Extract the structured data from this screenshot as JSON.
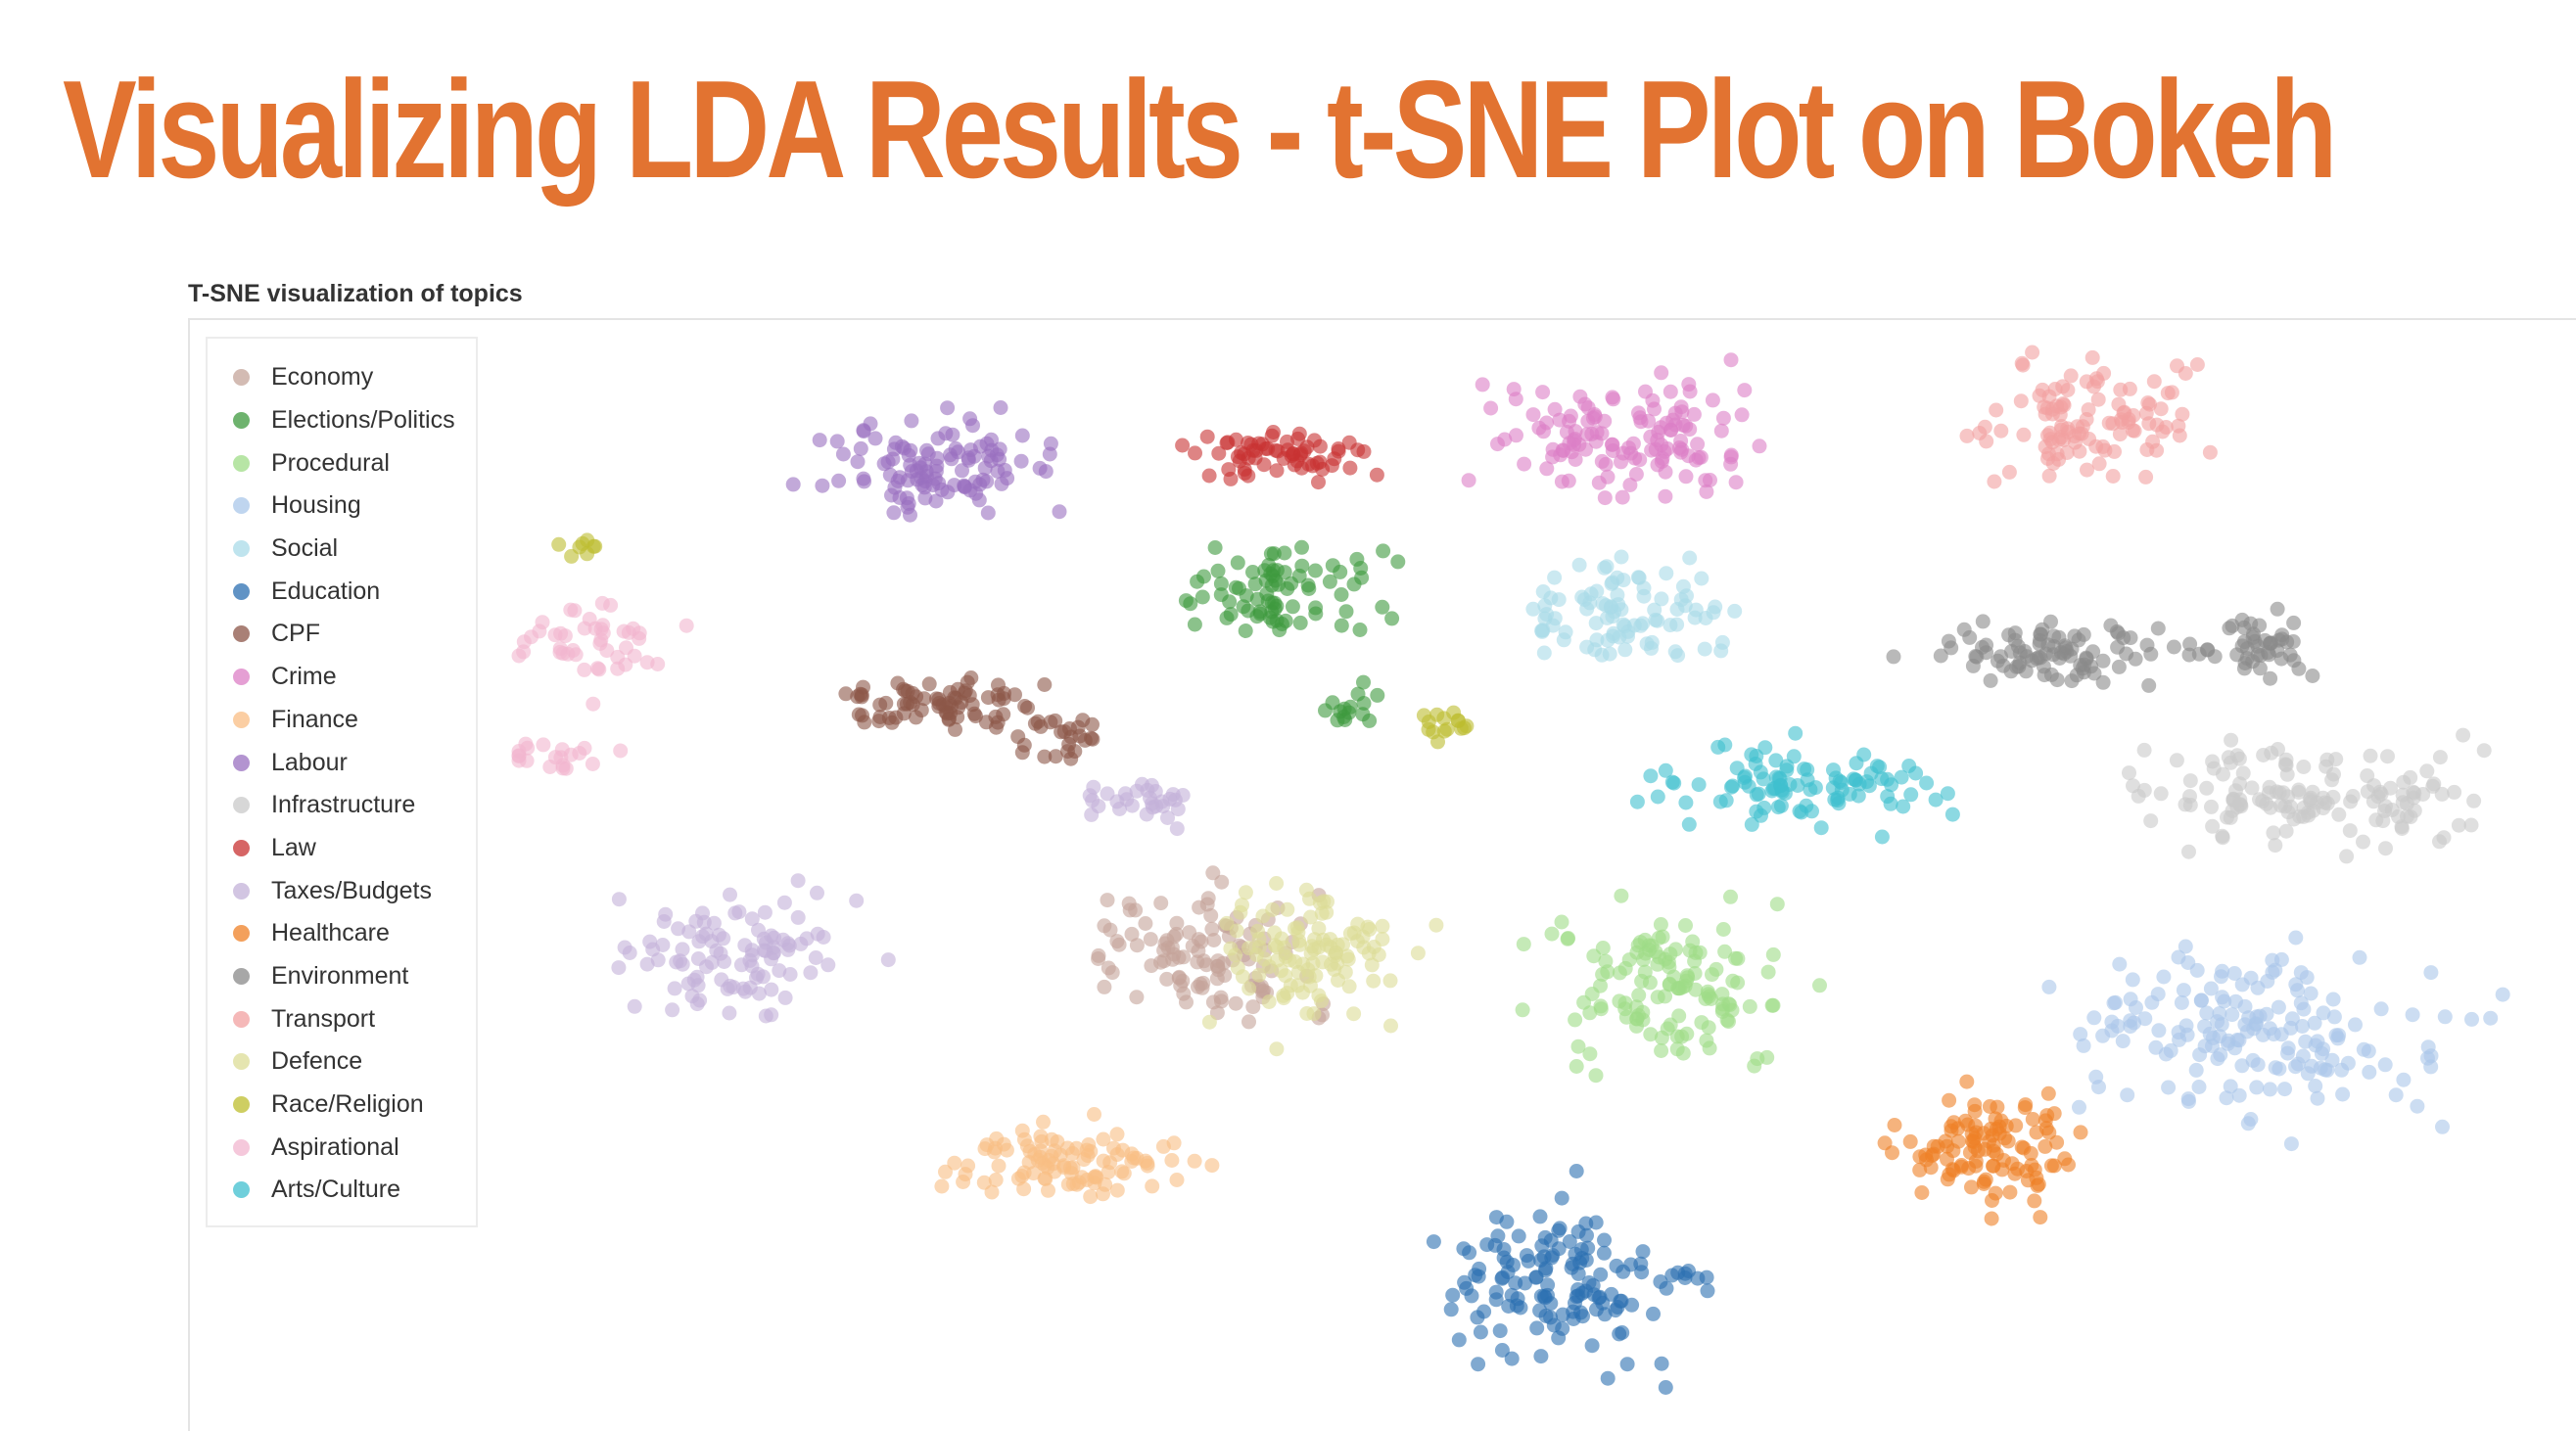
{
  "slide": {
    "title": "Visualizing LDA Results - t-SNE Plot on Bokeh"
  },
  "chart_data": {
    "type": "scatter",
    "title": "T-SNE visualization of topics",
    "xlabel": "",
    "ylabel": "",
    "grid": false,
    "legend_position": "top-left",
    "xlim": [
      0,
      100
    ],
    "ylim": [
      0,
      100
    ],
    "point_opacity": 0.6,
    "series": [
      {
        "name": "Economy",
        "color": "#c4a49a",
        "clusters": [
          {
            "cx": 34,
            "cy": 42,
            "rx": 5,
            "ry": 6,
            "n": 110
          }
        ]
      },
      {
        "name": "Elections/Politics",
        "color": "#3e9a3e",
        "clusters": [
          {
            "cx": 38,
            "cy": 77,
            "rx": 5,
            "ry": 3.5,
            "n": 80
          },
          {
            "cx": 41,
            "cy": 66,
            "rx": 1.5,
            "ry": 2,
            "n": 15
          }
        ]
      },
      {
        "name": "Procedural",
        "color": "#9fdc87",
        "clusters": [
          {
            "cx": 57,
            "cy": 39,
            "rx": 5.5,
            "ry": 7,
            "n": 130
          }
        ]
      },
      {
        "name": "Housing",
        "color": "#aac7ea",
        "clusters": [
          {
            "cx": 86,
            "cy": 35,
            "rx": 8,
            "ry": 7,
            "n": 170
          }
        ]
      },
      {
        "name": "Social",
        "color": "#a9dbe8",
        "clusters": [
          {
            "cx": 55,
            "cy": 75,
            "rx": 4.5,
            "ry": 5,
            "n": 90
          }
        ]
      },
      {
        "name": "Education",
        "color": "#2b6fb1",
        "clusters": [
          {
            "cx": 51,
            "cy": 10,
            "rx": 4.5,
            "ry": 7,
            "n": 130
          },
          {
            "cx": 58,
            "cy": 11,
            "rx": 1.5,
            "ry": 1.2,
            "n": 10
          }
        ]
      },
      {
        "name": "CPF",
        "color": "#8c5648",
        "clusters": [
          {
            "cx": 21,
            "cy": 66,
            "rx": 4.5,
            "ry": 2.5,
            "n": 75
          },
          {
            "cx": 27,
            "cy": 63,
            "rx": 2.5,
            "ry": 2,
            "n": 25
          }
        ]
      },
      {
        "name": "Crime",
        "color": "#dc7fc6",
        "clusters": [
          {
            "cx": 55,
            "cy": 92,
            "rx": 6,
            "ry": 5,
            "n": 130
          }
        ]
      },
      {
        "name": "Finance",
        "color": "#f9be84",
        "clusters": [
          {
            "cx": 27,
            "cy": 22,
            "rx": 5.5,
            "ry": 3,
            "n": 100
          }
        ]
      },
      {
        "name": "Labour",
        "color": "#9a70c0",
        "clusters": [
          {
            "cx": 21,
            "cy": 89,
            "rx": 5,
            "ry": 4.5,
            "n": 110
          }
        ]
      },
      {
        "name": "Infrastructure",
        "color": "#c9c9c9",
        "clusters": [
          {
            "cx": 89,
            "cy": 57,
            "rx": 7.5,
            "ry": 4,
            "n": 140
          }
        ]
      },
      {
        "name": "Law",
        "color": "#c83232",
        "clusters": [
          {
            "cx": 38,
            "cy": 90,
            "rx": 4,
            "ry": 2.2,
            "n": 65
          }
        ]
      },
      {
        "name": "Taxes/Budgets",
        "color": "#c3b1d8",
        "clusters": [
          {
            "cx": 11,
            "cy": 42,
            "rx": 5,
            "ry": 5,
            "n": 100
          },
          {
            "cx": 31,
            "cy": 57,
            "rx": 3,
            "ry": 2,
            "n": 30
          }
        ]
      },
      {
        "name": "Healthcare",
        "color": "#ef8026",
        "clusters": [
          {
            "cx": 73,
            "cy": 23,
            "rx": 4,
            "ry": 5,
            "n": 110
          }
        ]
      },
      {
        "name": "Environment",
        "color": "#8a8a8a",
        "clusters": [
          {
            "cx": 77,
            "cy": 71,
            "rx": 6,
            "ry": 3,
            "n": 90
          },
          {
            "cx": 86,
            "cy": 72,
            "rx": 2.5,
            "ry": 3,
            "n": 45
          }
        ]
      },
      {
        "name": "Transport",
        "color": "#f2a0a0",
        "clusters": [
          {
            "cx": 78,
            "cy": 94,
            "rx": 5,
            "ry": 5,
            "n": 110
          }
        ]
      },
      {
        "name": "Defence",
        "color": "#dcdc96",
        "clusters": [
          {
            "cx": 39,
            "cy": 42,
            "rx": 4,
            "ry": 6,
            "n": 110
          }
        ]
      },
      {
        "name": "Race/Religion",
        "color": "#bdbd2e",
        "clusters": [
          {
            "cx": 3,
            "cy": 81,
            "rx": 1,
            "ry": 1.5,
            "n": 8
          },
          {
            "cx": 46,
            "cy": 64,
            "rx": 2,
            "ry": 1.5,
            "n": 15
          }
        ]
      },
      {
        "name": "Aspirational",
        "color": "#f2b6cf",
        "clusters": [
          {
            "cx": 4,
            "cy": 72,
            "rx": 3.5,
            "ry": 3.5,
            "n": 45
          },
          {
            "cx": 2,
            "cy": 61,
            "rx": 2.5,
            "ry": 1.5,
            "n": 20
          }
        ]
      },
      {
        "name": "Arts/Culture",
        "color": "#3fbfcf",
        "clusters": [
          {
            "cx": 64,
            "cy": 58,
            "rx": 7,
            "ry": 3.5,
            "n": 100
          }
        ]
      }
    ]
  }
}
